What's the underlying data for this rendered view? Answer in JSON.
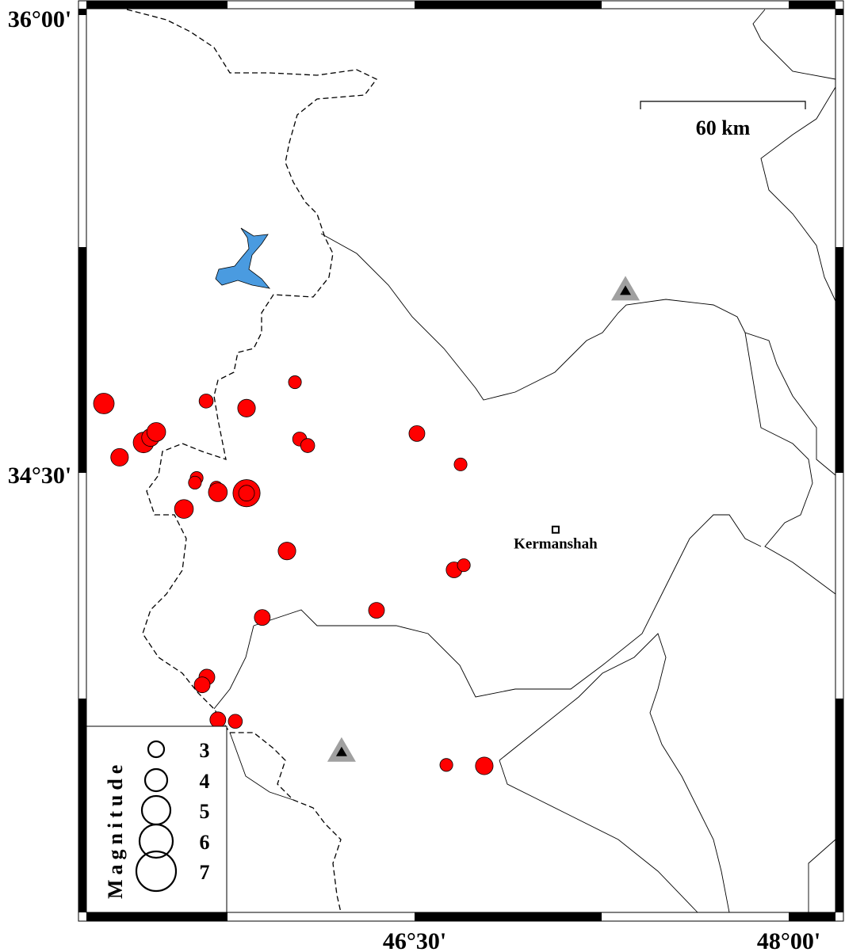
{
  "map": {
    "lon_range": [
      45.184,
      48.187
    ],
    "lat_range": [
      33.077,
      36.0
    ],
    "frame_labels": {
      "lat_top": "36°00'",
      "lat_mid": "34°30'",
      "lon_mid": "46°30'",
      "lon_right": "48°00'"
    },
    "scale_bar": {
      "label": "60 km"
    },
    "city": {
      "name": "Kermanshah",
      "lon": 47.065,
      "lat": 34.315
    },
    "stations": [
      {
        "lon": 47.345,
        "lat": 35.087
      },
      {
        "lon": 46.207,
        "lat": 33.595
      }
    ],
    "colors": {
      "event": "#ff0000",
      "lake": "#4a9be0",
      "station_outer": "#a0a0a0",
      "station_inner": "#000000"
    }
  },
  "legend": {
    "title": "Magnitude",
    "entries": [
      "3",
      "4",
      "5",
      "6",
      "7"
    ]
  },
  "events": [
    {
      "lon": 45.254,
      "lat": 34.723,
      "mag": 3.8
    },
    {
      "lon": 45.317,
      "lat": 34.549,
      "mag": 3.3
    },
    {
      "lon": 45.413,
      "lat": 34.597,
      "mag": 3.8
    },
    {
      "lon": 45.441,
      "lat": 34.613,
      "mag": 3.3
    },
    {
      "lon": 45.464,
      "lat": 34.631,
      "mag": 3.5
    },
    {
      "lon": 45.664,
      "lat": 34.731,
      "mag": 2.7
    },
    {
      "lon": 45.826,
      "lat": 34.708,
      "mag": 3.3
    },
    {
      "lon": 46.02,
      "lat": 34.792,
      "mag": 2.5
    },
    {
      "lon": 46.039,
      "lat": 34.608,
      "mag": 2.7
    },
    {
      "lon": 46.071,
      "lat": 34.587,
      "mag": 2.7
    },
    {
      "lon": 46.509,
      "lat": 34.626,
      "mag": 3.0
    },
    {
      "lon": 46.684,
      "lat": 34.526,
      "mag": 2.5
    },
    {
      "lon": 45.626,
      "lat": 34.482,
      "mag": 2.5
    },
    {
      "lon": 45.619,
      "lat": 34.467,
      "mag": 2.5
    },
    {
      "lon": 45.705,
      "lat": 34.451,
      "mag": 2.5
    },
    {
      "lon": 45.711,
      "lat": 34.436,
      "mag": 3.5
    },
    {
      "lon": 45.826,
      "lat": 34.433,
      "mag": 4.9
    },
    {
      "lon": 45.826,
      "lat": 34.433,
      "mag": 3.0
    },
    {
      "lon": 45.575,
      "lat": 34.382,
      "mag": 3.5
    },
    {
      "lon": 45.988,
      "lat": 34.246,
      "mag": 3.3
    },
    {
      "lon": 46.658,
      "lat": 34.185,
      "mag": 3.0
    },
    {
      "lon": 46.697,
      "lat": 34.2,
      "mag": 2.5
    },
    {
      "lon": 45.889,
      "lat": 34.031,
      "mag": 3.0
    },
    {
      "lon": 46.347,
      "lat": 34.054,
      "mag": 3.0
    },
    {
      "lon": 45.667,
      "lat": 33.838,
      "mag": 3.0
    },
    {
      "lon": 45.648,
      "lat": 33.813,
      "mag": 3.0
    },
    {
      "lon": 45.711,
      "lat": 33.7,
      "mag": 3.0
    },
    {
      "lon": 45.781,
      "lat": 33.695,
      "mag": 2.7
    },
    {
      "lon": 46.627,
      "lat": 33.554,
      "mag": 2.5
    },
    {
      "lon": 46.779,
      "lat": 33.551,
      "mag": 3.3
    }
  ]
}
